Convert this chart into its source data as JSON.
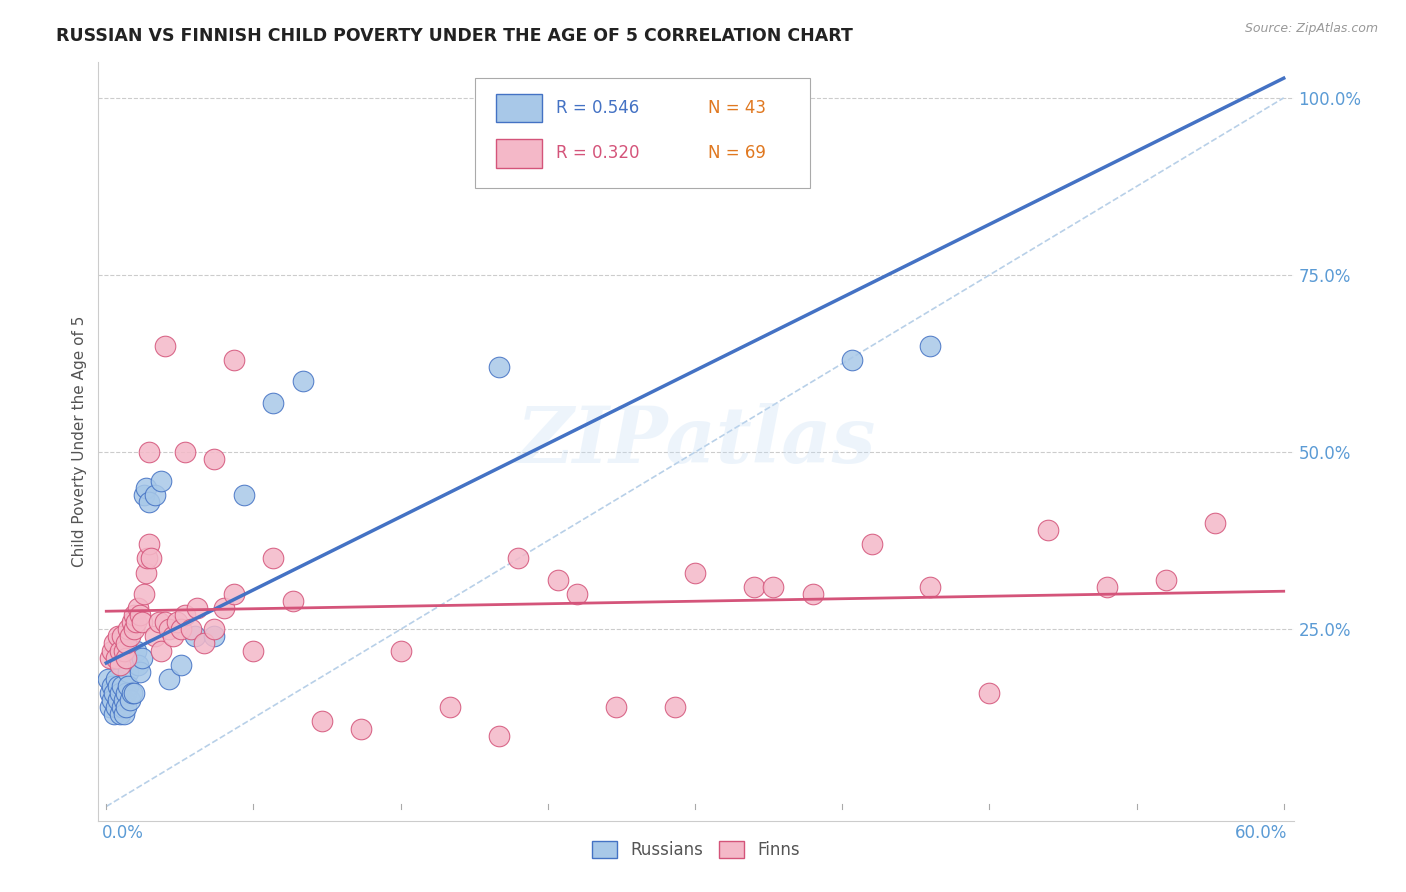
{
  "title": "RUSSIAN VS FINNISH CHILD POVERTY UNDER THE AGE OF 5 CORRELATION CHART",
  "source": "Source: ZipAtlas.com",
  "ylabel": "Child Poverty Under the Age of 5",
  "watermark": "ZIPatlas",
  "russian_color": "#a8c8e8",
  "russian_line_color": "#4472c4",
  "finnish_color": "#f4b8c8",
  "finnish_line_color": "#d4547a",
  "legend_r_russian": "R = 0.546",
  "legend_n_russian": "N = 43",
  "legend_r_finnish": "R = 0.320",
  "legend_n_finnish": "N = 69",
  "legend_color_r": "#4472c4",
  "legend_color_f": "#d4547a",
  "legend_color_n": "#4472c4",
  "background_color": "#ffffff",
  "grid_color": "#cccccc",
  "tick_label_color": "#5b9bd5",
  "rus_x": [
    0.001,
    0.002,
    0.002,
    0.003,
    0.003,
    0.004,
    0.004,
    0.005,
    0.005,
    0.006,
    0.006,
    0.007,
    0.007,
    0.008,
    0.008,
    0.009,
    0.009,
    0.01,
    0.01,
    0.011,
    0.011,
    0.012,
    0.013,
    0.014,
    0.015,
    0.016,
    0.017,
    0.018,
    0.019,
    0.02,
    0.022,
    0.025,
    0.028,
    0.032,
    0.038,
    0.045,
    0.055,
    0.07,
    0.085,
    0.1,
    0.2,
    0.38,
    0.42
  ],
  "rus_y": [
    0.18,
    0.16,
    0.14,
    0.17,
    0.15,
    0.13,
    0.16,
    0.14,
    0.18,
    0.15,
    0.17,
    0.13,
    0.16,
    0.14,
    0.17,
    0.15,
    0.13,
    0.16,
    0.14,
    0.19,
    0.17,
    0.15,
    0.16,
    0.16,
    0.22,
    0.2,
    0.19,
    0.21,
    0.44,
    0.45,
    0.43,
    0.44,
    0.46,
    0.18,
    0.2,
    0.24,
    0.24,
    0.44,
    0.57,
    0.6,
    0.62,
    0.63,
    0.65
  ],
  "fin_x": [
    0.002,
    0.003,
    0.004,
    0.005,
    0.006,
    0.007,
    0.007,
    0.008,
    0.009,
    0.01,
    0.01,
    0.011,
    0.012,
    0.013,
    0.014,
    0.014,
    0.015,
    0.016,
    0.017,
    0.018,
    0.019,
    0.02,
    0.021,
    0.022,
    0.023,
    0.025,
    0.027,
    0.028,
    0.03,
    0.032,
    0.034,
    0.036,
    0.038,
    0.04,
    0.043,
    0.046,
    0.05,
    0.055,
    0.06,
    0.065,
    0.075,
    0.085,
    0.095,
    0.11,
    0.13,
    0.15,
    0.175,
    0.2,
    0.23,
    0.26,
    0.3,
    0.33,
    0.36,
    0.39,
    0.42,
    0.45,
    0.48,
    0.51,
    0.54,
    0.565,
    0.21,
    0.24,
    0.29,
    0.34,
    0.04,
    0.055,
    0.065,
    0.03,
    0.022
  ],
  "fin_y": [
    0.21,
    0.22,
    0.23,
    0.21,
    0.24,
    0.22,
    0.2,
    0.24,
    0.22,
    0.21,
    0.23,
    0.25,
    0.24,
    0.26,
    0.25,
    0.27,
    0.26,
    0.28,
    0.27,
    0.26,
    0.3,
    0.33,
    0.35,
    0.37,
    0.35,
    0.24,
    0.26,
    0.22,
    0.26,
    0.25,
    0.24,
    0.26,
    0.25,
    0.27,
    0.25,
    0.28,
    0.23,
    0.25,
    0.28,
    0.3,
    0.22,
    0.35,
    0.29,
    0.12,
    0.11,
    0.22,
    0.14,
    0.1,
    0.32,
    0.14,
    0.33,
    0.31,
    0.3,
    0.37,
    0.31,
    0.16,
    0.39,
    0.31,
    0.32,
    0.4,
    0.35,
    0.3,
    0.14,
    0.31,
    0.5,
    0.49,
    0.63,
    0.65,
    0.5
  ],
  "xlim": [
    -0.004,
    0.605
  ],
  "ylim": [
    -0.02,
    1.05
  ],
  "yticks": [
    0.0,
    0.25,
    0.5,
    0.75,
    1.0
  ],
  "ytick_labels": [
    "",
    "25.0%",
    "50.0%",
    "75.0%",
    "100.0%"
  ]
}
